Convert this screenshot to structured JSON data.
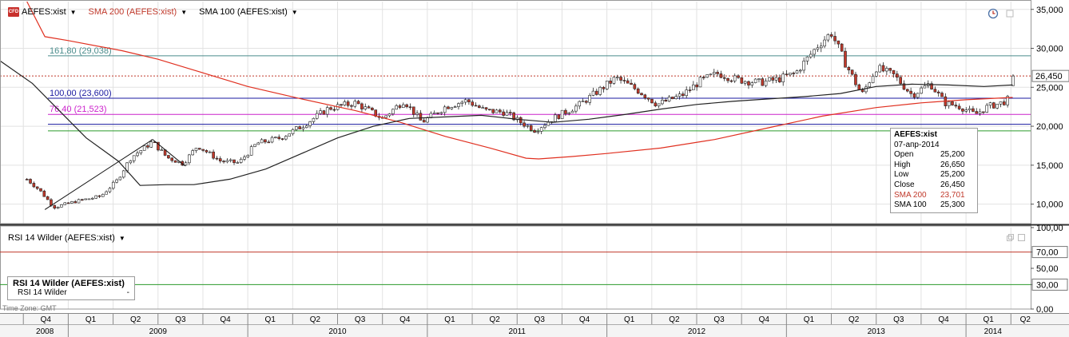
{
  "header": {
    "cfd_badge": "CFD",
    "symbol": "AEFES:xist",
    "sma200_label": "SMA 200 (AEFES:xist)",
    "sma100_label": "SMA 100 (AEFES:xist)",
    "rsi_label": "RSI 14 Wilder (AEFES:xist)"
  },
  "tooltip": {
    "symbol": "AEFES:xist",
    "date": "07-апр-2014",
    "rows": [
      {
        "label": "Open",
        "value": "25,200"
      },
      {
        "label": "High",
        "value": "26,650"
      },
      {
        "label": "Low",
        "value": "25,200"
      },
      {
        "label": "Close",
        "value": "26,450"
      },
      {
        "label": "SMA 200",
        "value": "23,701"
      },
      {
        "label": "SMA 100",
        "value": "25,300"
      }
    ]
  },
  "rsi_box": {
    "title": "RSI 14 Wilder (AEFES:xist)",
    "row_label": "RSI 14 Wilder",
    "row_value": "-"
  },
  "timezone": "Time Zone: GMT",
  "colors": {
    "candle_up": "#ffffff",
    "candle_down": "#c0392b",
    "sma200": "#e03020",
    "sma100": "#222222",
    "fib_161": "#4a8c8c",
    "fib_100": "#1a1aa0",
    "fib_76": "#cc22cc",
    "support": "#2a9a2a",
    "resistance": "#c0392b",
    "last_price": "#c0392b",
    "rsi70": "#c0392b",
    "rsi30": "#2a9a2a"
  },
  "chart_data": [
    {
      "type": "candlestick",
      "symbol": "AEFES:xist",
      "ylim": [
        7500,
        36000
      ],
      "yticks": [
        "10,000",
        "15,000",
        "20,000",
        "25,000",
        "30,000",
        "35,000"
      ],
      "last_price_label": "26,450",
      "level_lines": [
        {
          "label": "161,80 (29,038)",
          "value": 29038,
          "color": "#4a8c8c"
        },
        {
          "label": "100,00 (23,600)",
          "value": 23600,
          "color": "#1a1aa0"
        },
        {
          "label": "76,40 (21,523)",
          "value": 21523,
          "color": "#cc22cc"
        },
        {
          "value": 26450,
          "color": "#c0392b",
          "dotted": true
        },
        {
          "value": 20250,
          "color": "#1a1aa0"
        },
        {
          "value": 19400,
          "color": "#2a9a2a"
        }
      ],
      "trendlines": [
        {
          "x": [
            2008.87,
            2009.47
          ],
          "y": [
            9300,
            18300
          ]
        },
        {
          "x": [
            2009.47,
            2009.65
          ],
          "y": [
            18300,
            14900
          ]
        }
      ],
      "anchors": [
        {
          "t": 2008.77,
          "p": 13200
        },
        {
          "t": 2008.84,
          "p": 11800
        },
        {
          "t": 2008.92,
          "p": 9600
        },
        {
          "t": 2009.05,
          "p": 10400
        },
        {
          "t": 2009.18,
          "p": 11000
        },
        {
          "t": 2009.27,
          "p": 13000
        },
        {
          "t": 2009.35,
          "p": 16000
        },
        {
          "t": 2009.47,
          "p": 18000
        },
        {
          "t": 2009.55,
          "p": 16000
        },
        {
          "t": 2009.64,
          "p": 15200
        },
        {
          "t": 2009.72,
          "p": 17500
        },
        {
          "t": 2009.85,
          "p": 15500
        },
        {
          "t": 2009.95,
          "p": 15300
        },
        {
          "t": 2010.05,
          "p": 17800
        },
        {
          "t": 2010.18,
          "p": 18500
        },
        {
          "t": 2010.3,
          "p": 20000
        },
        {
          "t": 2010.45,
          "p": 22300
        },
        {
          "t": 2010.6,
          "p": 23000
        },
        {
          "t": 2010.75,
          "p": 21000
        },
        {
          "t": 2010.87,
          "p": 23300
        },
        {
          "t": 2010.97,
          "p": 20500
        },
        {
          "t": 2011.1,
          "p": 22500
        },
        {
          "t": 2011.22,
          "p": 23300
        },
        {
          "t": 2011.32,
          "p": 22000
        },
        {
          "t": 2011.43,
          "p": 21800
        },
        {
          "t": 2011.52,
          "p": 20500
        },
        {
          "t": 2011.6,
          "p": 19500
        },
        {
          "t": 2011.7,
          "p": 21000
        },
        {
          "t": 2011.85,
          "p": 22800
        },
        {
          "t": 2011.95,
          "p": 24500
        },
        {
          "t": 2012.05,
          "p": 26200
        },
        {
          "t": 2012.18,
          "p": 24500
        },
        {
          "t": 2012.28,
          "p": 22800
        },
        {
          "t": 2012.42,
          "p": 24000
        },
        {
          "t": 2012.52,
          "p": 25800
        },
        {
          "t": 2012.62,
          "p": 26800
        },
        {
          "t": 2012.72,
          "p": 26000
        },
        {
          "t": 2012.85,
          "p": 25600
        },
        {
          "t": 2012.95,
          "p": 26000
        },
        {
          "t": 2013.05,
          "p": 26800
        },
        {
          "t": 2013.18,
          "p": 30500
        },
        {
          "t": 2013.25,
          "p": 32000
        },
        {
          "t": 2013.33,
          "p": 28000
        },
        {
          "t": 2013.42,
          "p": 24000
        },
        {
          "t": 2013.5,
          "p": 27500
        },
        {
          "t": 2013.6,
          "p": 26500
        },
        {
          "t": 2013.7,
          "p": 24000
        },
        {
          "t": 2013.8,
          "p": 25500
        },
        {
          "t": 2013.88,
          "p": 23000
        },
        {
          "t": 2013.97,
          "p": 22500
        },
        {
          "t": 2014.05,
          "p": 21500
        },
        {
          "t": 2014.12,
          "p": 22500
        },
        {
          "t": 2014.2,
          "p": 23000
        },
        {
          "t": 2014.24,
          "p": 23500
        },
        {
          "t": 2014.26,
          "p": 26450
        }
      ],
      "sma200": {
        "x": [
          2008.77,
          2008.87,
          2009.0,
          2009.3,
          2009.5,
          2009.7,
          2010.0,
          2010.3,
          2010.6,
          2010.85,
          2011.1,
          2011.35,
          2011.55,
          2011.62,
          2011.8,
          2012.0,
          2012.3,
          2012.6,
          2012.9,
          2013.2,
          2013.5,
          2013.75,
          2014.0,
          2014.26
        ],
        "y": [
          36000,
          31500,
          31000,
          29700,
          28600,
          27200,
          25100,
          23500,
          22000,
          20500,
          18700,
          17200,
          15900,
          15800,
          16100,
          16500,
          17200,
          18300,
          19800,
          21300,
          22400,
          23000,
          23400,
          23700
        ]
      },
      "sma100": {
        "x": [
          2008.62,
          2008.8,
          2008.95,
          2009.1,
          2009.28,
          2009.4,
          2009.55,
          2009.7,
          2009.9,
          2010.1,
          2010.3,
          2010.5,
          2010.7,
          2010.9,
          2011.1,
          2011.3,
          2011.5,
          2011.7,
          2011.9,
          2012.1,
          2012.3,
          2012.5,
          2012.7,
          2012.9,
          2013.1,
          2013.3,
          2013.5,
          2013.7,
          2013.9,
          2014.1,
          2014.26
        ],
        "y": [
          28400,
          25500,
          22000,
          18500,
          15500,
          12400,
          12500,
          12500,
          13200,
          14500,
          16500,
          18500,
          20000,
          21000,
          21200,
          21400,
          20900,
          20500,
          20900,
          21500,
          22200,
          22800,
          23200,
          23500,
          23800,
          24200,
          25100,
          25400,
          25300,
          25100,
          25300
        ]
      },
      "tooltip_bar": {
        "date": "07-апр-2014",
        "open": 25200,
        "high": 26650,
        "low": 25200,
        "close": 26450
      }
    },
    {
      "type": "line",
      "title": "RSI 14 Wilder (AEFES:xist)",
      "ylim": [
        0,
        100
      ],
      "yticks": [
        "0,00",
        "30,00",
        "50,00",
        "70,00",
        "100,00"
      ],
      "levels": [
        {
          "label": "70,00",
          "value": 70
        },
        {
          "label": "30,00",
          "value": 30
        }
      ]
    }
  ],
  "time_axis": {
    "quarters": [
      {
        "label": "Q4",
        "t": 2008.875
      },
      {
        "label": "Q1",
        "t": 2009.125
      },
      {
        "label": "Q2",
        "t": 2009.375
      },
      {
        "label": "Q3",
        "t": 2009.625
      },
      {
        "label": "Q4",
        "t": 2009.875
      },
      {
        "label": "Q1",
        "t": 2010.125
      },
      {
        "label": "Q2",
        "t": 2010.375
      },
      {
        "label": "Q3",
        "t": 2010.625
      },
      {
        "label": "Q4",
        "t": 2010.875
      },
      {
        "label": "Q1",
        "t": 2011.125
      },
      {
        "label": "Q2",
        "t": 2011.375
      },
      {
        "label": "Q3",
        "t": 2011.625
      },
      {
        "label": "Q4",
        "t": 2011.875
      },
      {
        "label": "Q1",
        "t": 2012.125
      },
      {
        "label": "Q2",
        "t": 2012.375
      },
      {
        "label": "Q3",
        "t": 2012.625
      },
      {
        "label": "Q4",
        "t": 2012.875
      },
      {
        "label": "Q1",
        "t": 2013.125
      },
      {
        "label": "Q2",
        "t": 2013.375
      },
      {
        "label": "Q3",
        "t": 2013.625
      },
      {
        "label": "Q4",
        "t": 2013.875
      },
      {
        "label": "Q1",
        "t": 2014.125
      },
      {
        "label": "Q2",
        "t": 2014.33
      }
    ],
    "years": [
      {
        "label": "2008",
        "t": 2008.87
      },
      {
        "label": "2009",
        "t": 2009.5
      },
      {
        "label": "2010",
        "t": 2010.5
      },
      {
        "label": "2011",
        "t": 2011.5
      },
      {
        "label": "2012",
        "t": 2012.5
      },
      {
        "label": "2013",
        "t": 2013.5
      },
      {
        "label": "2014",
        "t": 2014.15
      }
    ]
  }
}
